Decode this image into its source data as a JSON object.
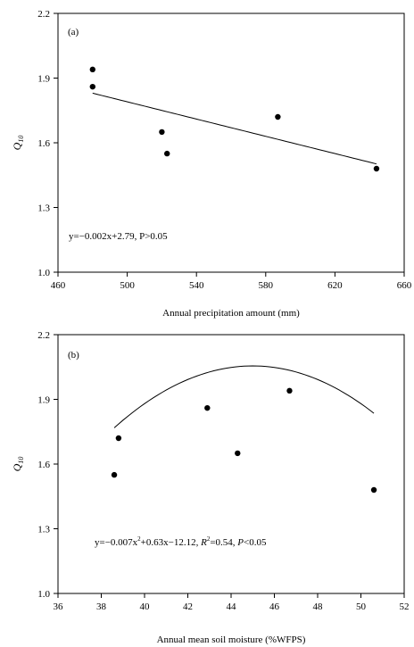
{
  "chart_data": [
    {
      "type": "scatter",
      "panel_label": "(a)",
      "xlabel": "Annual precipitation amount (mm)",
      "ylabel": "Q",
      "ylabel_sub": "10",
      "xlim": [
        460,
        660
      ],
      "ylim": [
        1.0,
        2.2
      ],
      "xticks": [
        460,
        500,
        540,
        580,
        620,
        660
      ],
      "yticks": [
        1.0,
        1.3,
        1.6,
        1.9,
        2.2
      ],
      "ytick_decimals": 1,
      "grid": false,
      "points": [
        {
          "x": 480,
          "y": 1.94
        },
        {
          "x": 480,
          "y": 1.86
        },
        {
          "x": 520,
          "y": 1.65
        },
        {
          "x": 523,
          "y": 1.55
        },
        {
          "x": 587,
          "y": 1.72
        },
        {
          "x": 644,
          "y": 1.48
        }
      ],
      "fit": {
        "kind": "linear",
        "coeffs": [
          2.79,
          -0.002
        ],
        "x_range": [
          480,
          644
        ]
      },
      "equation": {
        "pre": "y=−0.002x+2.79, P>0.05"
      }
    },
    {
      "type": "scatter",
      "panel_label": "(b)",
      "xlabel": "Annual mean soil moisture (%WFPS)",
      "ylabel": "Q",
      "ylabel_sub": "10",
      "xlim": [
        36,
        52
      ],
      "ylim": [
        1.0,
        2.2
      ],
      "xticks": [
        36,
        38,
        40,
        42,
        44,
        46,
        48,
        50,
        52
      ],
      "yticks": [
        1.0,
        1.3,
        1.6,
        1.9,
        2.2
      ],
      "ytick_decimals": 1,
      "grid": false,
      "points": [
        {
          "x": 38.6,
          "y": 1.55
        },
        {
          "x": 38.8,
          "y": 1.72
        },
        {
          "x": 42.9,
          "y": 1.86
        },
        {
          "x": 44.3,
          "y": 1.65
        },
        {
          "x": 46.7,
          "y": 1.94
        },
        {
          "x": 50.6,
          "y": 1.48
        }
      ],
      "fit": {
        "kind": "quadratic",
        "coeffs": [
          -12.12,
          0.63,
          -0.007
        ],
        "x_range": [
          38.6,
          50.6
        ]
      },
      "equation": {
        "pre": "y=−0.007x",
        "sup": "2",
        "mid": "+0.63x−12.12, ",
        "r": "R",
        "r_sup": "2",
        "r_val": "=0.54, ",
        "p": "P",
        "p_val": "<0.05"
      }
    }
  ]
}
